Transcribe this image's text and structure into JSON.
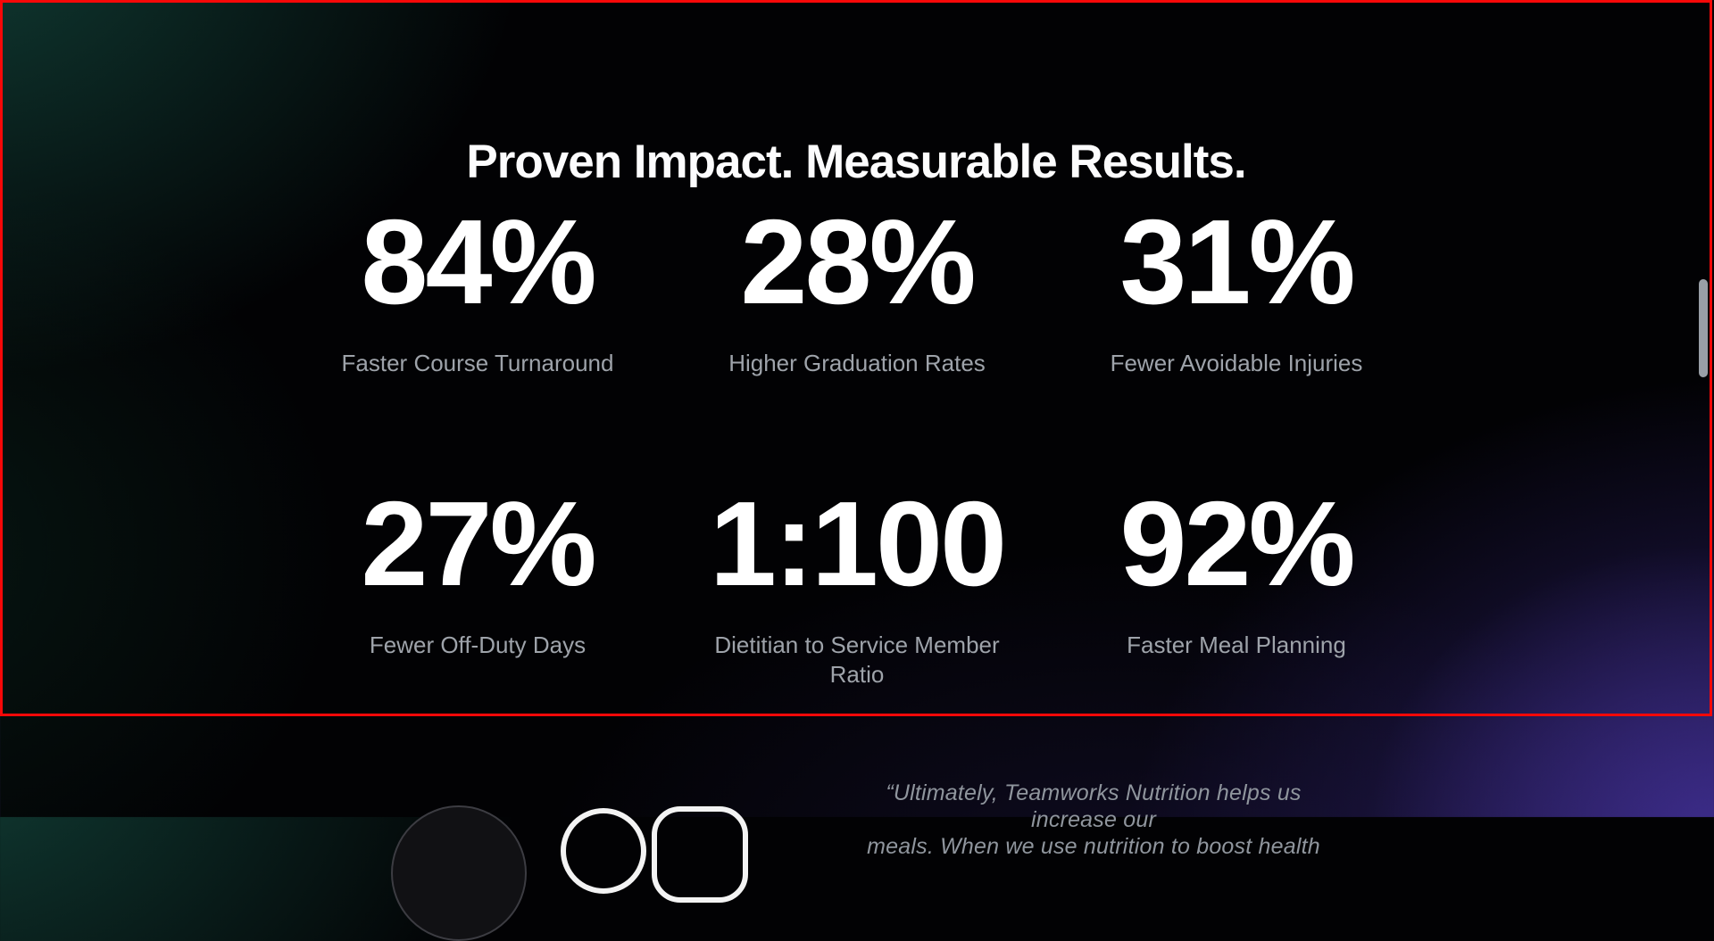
{
  "section": {
    "title": "Proven Impact. Measurable Results.",
    "stats": [
      {
        "value": "84%",
        "label": "Faster Course Turnaround"
      },
      {
        "value": "28%",
        "label": "Higher Graduation Rates"
      },
      {
        "value": "31%",
        "label": "Fewer Avoidable Injuries"
      },
      {
        "value": "27%",
        "label": "Fewer Off-Duty Days"
      },
      {
        "value": "1:100",
        "label": "Dietitian to Service Member Ratio"
      },
      {
        "value": "92%",
        "label": "Faster Meal Planning"
      }
    ]
  },
  "testimonial": {
    "quote_line1": "“Ultimately, Teamworks Nutrition helps us increase our",
    "quote_line2_clipped": "meals. When we use nutrition to boost health"
  },
  "annotation": {
    "highlight_box_color": "#f70808"
  },
  "colors": {
    "background_base": "#020204",
    "glow_teal_top_left": "#154d42",
    "glow_purple_bottom_right": "#3e2d94",
    "stat_value": "#ffffff",
    "stat_label": "#9ea3aa",
    "quote_text": "#8f959d",
    "scrollbar_thumb": "#999ea6"
  }
}
